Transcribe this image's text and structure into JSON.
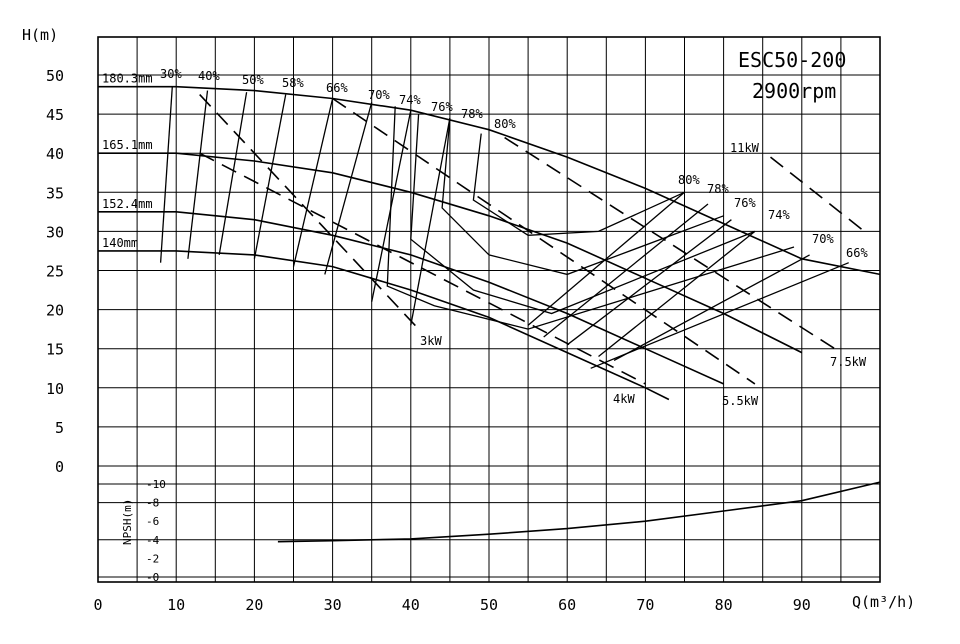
{
  "chart_data": {
    "type": "line",
    "model": "ESC50-200",
    "speed": "2900rpm",
    "xlabel": "Q(m³/h)",
    "ylabel": "H(m)",
    "npsh_label": "NPSH(m)",
    "xlim": [
      0,
      100
    ],
    "ylim": [
      0,
      50
    ],
    "x_ticks": [
      0,
      10,
      20,
      30,
      40,
      50,
      60,
      70,
      80,
      90
    ],
    "y_ticks": [
      0,
      5,
      10,
      15,
      20,
      25,
      30,
      35,
      40,
      45,
      50
    ],
    "npsh_ticks": [
      0,
      2,
      4,
      6,
      8,
      10
    ],
    "grid": true,
    "impeller_curves": [
      {
        "label": "180.3mm",
        "points": [
          [
            0,
            48.5
          ],
          [
            10,
            48.5
          ],
          [
            20,
            48
          ],
          [
            30,
            47
          ],
          [
            40,
            45.5
          ],
          [
            50,
            43
          ],
          [
            60,
            39.5
          ],
          [
            70,
            35.5
          ],
          [
            80,
            31
          ],
          [
            90,
            26.5
          ],
          [
            100,
            24.5
          ]
        ]
      },
      {
        "label": "165.1mm",
        "points": [
          [
            0,
            40
          ],
          [
            10,
            40
          ],
          [
            20,
            39
          ],
          [
            30,
            37.5
          ],
          [
            40,
            35
          ],
          [
            50,
            32
          ],
          [
            60,
            28.5
          ],
          [
            70,
            24
          ],
          [
            80,
            19.5
          ],
          [
            90,
            14.5
          ]
        ]
      },
      {
        "label": "152.4mm",
        "points": [
          [
            0,
            32.5
          ],
          [
            10,
            32.5
          ],
          [
            20,
            31.5
          ],
          [
            30,
            29.5
          ],
          [
            40,
            27
          ],
          [
            50,
            23.5
          ],
          [
            60,
            19.5
          ],
          [
            70,
            15
          ],
          [
            80,
            10.5
          ]
        ]
      },
      {
        "label": "140mm",
        "points": [
          [
            0,
            27.5
          ],
          [
            10,
            27.5
          ],
          [
            20,
            27
          ],
          [
            30,
            25.5
          ],
          [
            40,
            22.5
          ],
          [
            50,
            19
          ],
          [
            60,
            14.5
          ],
          [
            70,
            10
          ],
          [
            73,
            8.5
          ]
        ]
      }
    ],
    "efficiency_labels_top": [
      "30%",
      "40%",
      "50%",
      "58%",
      "66%",
      "70%",
      "74%",
      "76%",
      "78%",
      "80%"
    ],
    "efficiency_labels_right": [
      "80%",
      "78%",
      "76%",
      "74%",
      "70%",
      "66%"
    ],
    "power_lines": [
      {
        "label": "3kW",
        "points": [
          [
            13,
            47.5
          ],
          [
            41,
            17.5
          ]
        ]
      },
      {
        "label": "4kW",
        "points": [
          [
            13,
            40
          ],
          [
            70,
            10.5
          ]
        ]
      },
      {
        "label": "5.5kW",
        "points": [
          [
            30,
            47
          ],
          [
            84,
            10.5
          ]
        ]
      },
      {
        "label": "7.5kW",
        "points": [
          [
            52,
            42
          ],
          [
            95,
            14.5
          ]
        ]
      },
      {
        "label": "11kW",
        "points": [
          [
            86,
            39.5
          ],
          [
            98,
            30
          ]
        ]
      }
    ],
    "npsh_curve": {
      "name": "NPSH",
      "points": [
        [
          23,
          3.8
        ],
        [
          30,
          3.9
        ],
        [
          40,
          4.1
        ],
        [
          50,
          4.6
        ],
        [
          60,
          5.2
        ],
        [
          70,
          6
        ],
        [
          80,
          7.1
        ],
        [
          90,
          8.2
        ],
        [
          100,
          10.2
        ]
      ]
    }
  }
}
